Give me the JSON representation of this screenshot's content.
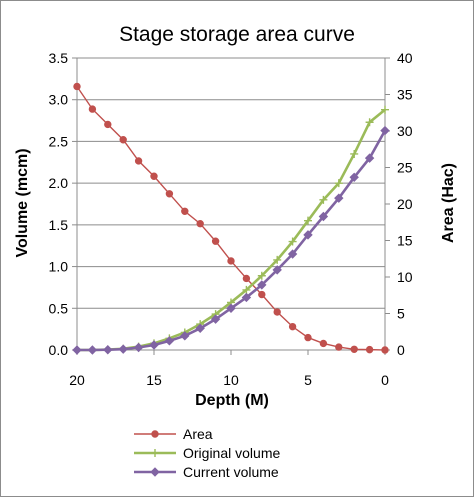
{
  "chart_data": {
    "type": "line",
    "title": "Stage storage area curve",
    "xlabel": "Depth (M)",
    "ylabel_left": "Volume (mcm)",
    "ylabel_right": "Area (Hac)",
    "x_reversed": true,
    "xlim": [
      20,
      0
    ],
    "xticks": [
      20,
      15,
      10,
      5,
      0
    ],
    "ylim_left": [
      0,
      3.5
    ],
    "yticks_left": [
      "0.0",
      "0.5",
      "1.0",
      "1.5",
      "2.0",
      "2.5",
      "3.0",
      "3.5"
    ],
    "ylim_right": [
      0,
      40
    ],
    "yticks_right": [
      "0",
      "5",
      "10",
      "15",
      "20",
      "25",
      "30",
      "35",
      "40"
    ],
    "grid": "horizontal",
    "legend": "bottom",
    "x": [
      20,
      19,
      18,
      17,
      16,
      15,
      14,
      13,
      12,
      11,
      10,
      9,
      8,
      7,
      6,
      5,
      4,
      3,
      2,
      1,
      0
    ],
    "series": [
      {
        "name": "Area",
        "axis": "right",
        "color": "#c0504d",
        "marker": "circle",
        "values": [
          36.1,
          33.0,
          30.9,
          28.8,
          25.9,
          23.8,
          21.4,
          19.0,
          17.3,
          14.9,
          12.2,
          9.8,
          7.6,
          5.2,
          3.2,
          1.7,
          0.9,
          0.4,
          0.1,
          0.05,
          0.0
        ]
      },
      {
        "name": "Original volume",
        "axis": "left",
        "color": "#9bbb59",
        "marker": "plus",
        "values": [
          0.0,
          0.0,
          0.005,
          0.015,
          0.04,
          0.08,
          0.14,
          0.21,
          0.31,
          0.43,
          0.57,
          0.72,
          0.89,
          1.08,
          1.3,
          1.55,
          1.8,
          2.0,
          2.35,
          2.73,
          2.88
        ]
      },
      {
        "name": "Current volume",
        "axis": "left",
        "color": "#8064a2",
        "marker": "diamond",
        "values": [
          0.0,
          0.0,
          0.003,
          0.01,
          0.03,
          0.06,
          0.11,
          0.17,
          0.26,
          0.37,
          0.5,
          0.63,
          0.78,
          0.96,
          1.15,
          1.38,
          1.6,
          1.82,
          2.07,
          2.3,
          2.63
        ]
      }
    ]
  }
}
